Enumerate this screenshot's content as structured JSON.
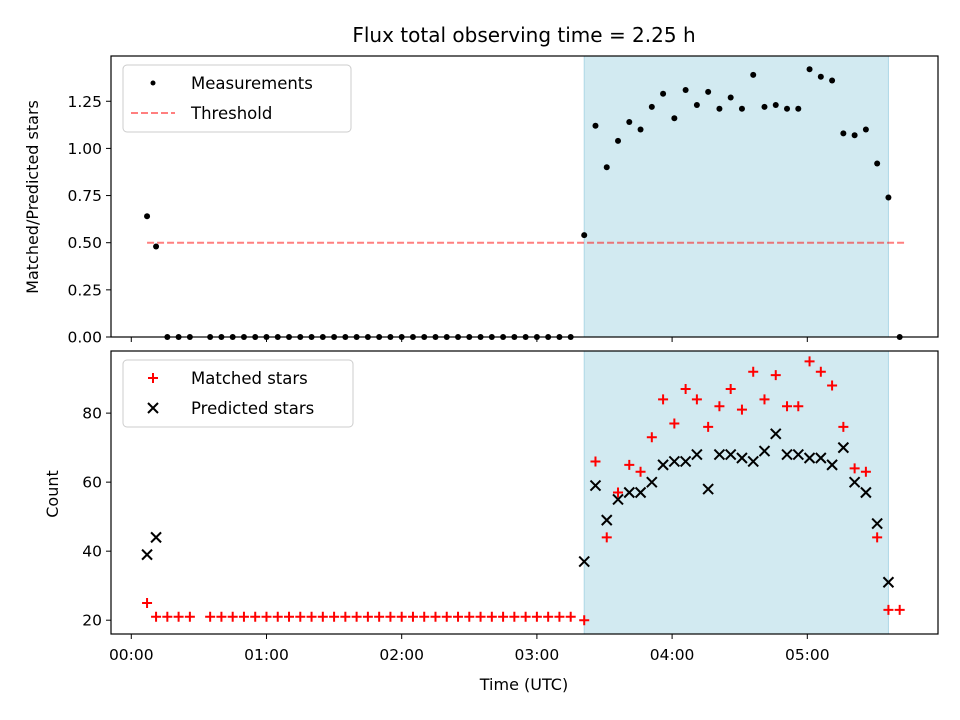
{
  "title": "Flux total observing time = 2.25 h",
  "colors": {
    "shade": "#add8e6",
    "threshold": "#ff0000",
    "matched": "#ff0000",
    "predicted": "#000000",
    "measure": "#000000"
  },
  "chart_data": [
    {
      "type": "scatter",
      "ylabel": "Matched/Predicted stars",
      "xlim": [
        "23:51",
        "05:58"
      ],
      "ylim": [
        0,
        1.49
      ],
      "yticks": [
        0.0,
        0.25,
        0.5,
        0.75,
        1.0,
        1.25
      ],
      "ytick_labels": [
        "0.00",
        "0.25",
        "0.50",
        "0.75",
        "1.00",
        "1.25"
      ],
      "shaded_span": [
        "03:21",
        "05:36"
      ],
      "legend": {
        "position": "upper-left",
        "entries": [
          "Measurements",
          "Threshold"
        ]
      },
      "threshold": {
        "name": "Threshold",
        "value": 0.5,
        "x_range": [
          "00:07",
          "05:43"
        ],
        "style": "dashed"
      },
      "series": [
        {
          "name": "Measurements",
          "x": [
            "00:07",
            "00:11",
            "00:16",
            "00:21",
            "00:26",
            "00:35",
            "00:40",
            "00:45",
            "00:50",
            "00:55",
            "01:00",
            "01:05",
            "01:10",
            "01:15",
            "01:20",
            "01:25",
            "01:30",
            "01:35",
            "01:40",
            "01:45",
            "01:50",
            "01:55",
            "02:00",
            "02:05",
            "02:10",
            "02:15",
            "02:20",
            "02:25",
            "02:30",
            "02:35",
            "02:40",
            "02:45",
            "02:50",
            "02:55",
            "03:00",
            "03:05",
            "03:10",
            "03:15",
            "03:21",
            "03:26",
            "03:31",
            "03:36",
            "03:41",
            "03:46",
            "03:51",
            "03:56",
            "04:01",
            "04:06",
            "04:11",
            "04:16",
            "04:21",
            "04:26",
            "04:31",
            "04:36",
            "04:41",
            "04:46",
            "04:51",
            "04:56",
            "05:01",
            "05:06",
            "05:11",
            "05:16",
            "05:21",
            "05:26",
            "05:31",
            "05:36",
            "05:41"
          ],
          "y": [
            0.64,
            0.48,
            0.0,
            0.0,
            0.0,
            0.0,
            0.0,
            0.0,
            0.0,
            0.0,
            0.0,
            0.0,
            0.0,
            0.0,
            0.0,
            0.0,
            0.0,
            0.0,
            0.0,
            0.0,
            0.0,
            0.0,
            0.0,
            0.0,
            0.0,
            0.0,
            0.0,
            0.0,
            0.0,
            0.0,
            0.0,
            0.0,
            0.0,
            0.0,
            0.0,
            0.0,
            0.0,
            0.0,
            0.54,
            1.12,
            0.9,
            1.04,
            1.14,
            1.1,
            1.22,
            1.29,
            1.16,
            1.31,
            1.23,
            1.3,
            1.21,
            1.27,
            1.21,
            1.39,
            1.22,
            1.23,
            1.21,
            1.21,
            1.42,
            1.38,
            1.36,
            1.08,
            1.07,
            1.1,
            0.92,
            0.74,
            0.0
          ]
        }
      ]
    },
    {
      "type": "scatter",
      "xlabel": "Time (UTC)",
      "ylabel": "Count",
      "xlim": [
        "23:51",
        "05:58"
      ],
      "ylim": [
        16,
        98
      ],
      "yticks": [
        20,
        40,
        60,
        80
      ],
      "ytick_labels": [
        "20",
        "40",
        "60",
        "80"
      ],
      "xticks": [
        "00:00",
        "01:00",
        "02:00",
        "03:00",
        "04:00",
        "05:00"
      ],
      "shaded_span": [
        "03:21",
        "05:36"
      ],
      "legend": {
        "position": "upper-left",
        "entries": [
          "Matched stars",
          "Predicted stars"
        ]
      },
      "series": [
        {
          "name": "Matched stars",
          "marker": "plus",
          "x": [
            "00:07",
            "00:11",
            "00:16",
            "00:21",
            "00:26",
            "00:35",
            "00:40",
            "00:45",
            "00:50",
            "00:55",
            "01:00",
            "01:05",
            "01:10",
            "01:15",
            "01:20",
            "01:25",
            "01:30",
            "01:35",
            "01:40",
            "01:45",
            "01:50",
            "01:55",
            "02:00",
            "02:05",
            "02:10",
            "02:15",
            "02:20",
            "02:25",
            "02:30",
            "02:35",
            "02:40",
            "02:45",
            "02:50",
            "02:55",
            "03:00",
            "03:05",
            "03:10",
            "03:15",
            "03:21",
            "03:26",
            "03:31",
            "03:36",
            "03:41",
            "03:46",
            "03:51",
            "03:56",
            "04:01",
            "04:06",
            "04:11",
            "04:16",
            "04:21",
            "04:26",
            "04:31",
            "04:36",
            "04:41",
            "04:46",
            "04:51",
            "04:56",
            "05:01",
            "05:06",
            "05:11",
            "05:16",
            "05:21",
            "05:26",
            "05:31",
            "05:36",
            "05:41"
          ],
          "y": [
            25,
            21,
            21,
            21,
            21,
            21,
            21,
            21,
            21,
            21,
            21,
            21,
            21,
            21,
            21,
            21,
            21,
            21,
            21,
            21,
            21,
            21,
            21,
            21,
            21,
            21,
            21,
            21,
            21,
            21,
            21,
            21,
            21,
            21,
            21,
            21,
            21,
            21,
            20,
            66,
            44,
            57,
            65,
            63,
            73,
            84,
            77,
            87,
            84,
            76,
            82,
            87,
            81,
            92,
            84,
            91,
            82,
            82,
            95,
            92,
            88,
            76,
            64,
            63,
            44,
            23,
            23
          ]
        },
        {
          "name": "Predicted stars",
          "marker": "x",
          "x": [
            "00:07",
            "00:11",
            "03:21",
            "03:26",
            "03:31",
            "03:36",
            "03:41",
            "03:46",
            "03:51",
            "03:56",
            "04:01",
            "04:06",
            "04:11",
            "04:16",
            "04:21",
            "04:26",
            "04:31",
            "04:36",
            "04:41",
            "04:46",
            "04:51",
            "04:56",
            "05:01",
            "05:06",
            "05:11",
            "05:16",
            "05:21",
            "05:26",
            "05:31",
            "05:36"
          ],
          "y": [
            39,
            44,
            37,
            59,
            49,
            55,
            57,
            57,
            60,
            65,
            66,
            66,
            68,
            58,
            68,
            68,
            67,
            66,
            69,
            74,
            68,
            68,
            67,
            67,
            65,
            70,
            60,
            57,
            48,
            31
          ]
        }
      ]
    }
  ]
}
